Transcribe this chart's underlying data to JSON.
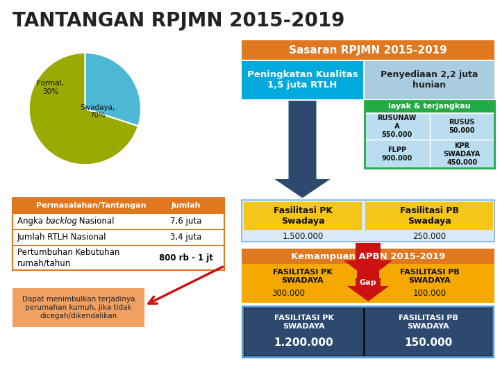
{
  "title": "TANTANGAN RPJMN 2015-2019",
  "title_color": "#222222",
  "bg_color": "#ffffff",
  "pie_slices": [
    30,
    70
  ],
  "pie_colors": [
    "#4db8d4",
    "#9aaa00"
  ],
  "pie_labels_formal": "Formal,\n30%",
  "pie_labels_swadaya": "Swadaya,\n70%",
  "table_header_bg": "#e07820",
  "table_header_text_color": "#ffffff",
  "table_header_col1": "Permasalahan/Tantangan",
  "table_header_col2": "Jumlah",
  "table_rows": [
    [
      "Angka backlog Nasional",
      "7,6 juta"
    ],
    [
      "Jumlah RTLH Nasional",
      "3,4 juta"
    ],
    [
      "Pertumbuhan Kebutuhan\nrumah/tahun",
      "800 rb - 1 jt"
    ]
  ],
  "table_border_color": "#e07820",
  "note_bg": "#f0a060",
  "note_text": "Dapat menimbulkan terjadinya\nperumahan kumuh, jika tidak\ndicegah/dikendalikan",
  "sasaran_header_bg": "#e07820",
  "sasaran_header_text": "Sasaran RPJMN 2015-2019",
  "sasaran_header_text_color": "#ffffff",
  "pk_bg": "#00aadd",
  "pk_text": "Peningkatan Kualitas\n1,5 juta RTLH",
  "pk_text_color": "#ffffff",
  "pb_bg": "#aacce0",
  "pb_text": "Penyediaan 2,2 juta\nhunian",
  "pb_text_color": "#222222",
  "layak_bg": "#22aa44",
  "layak_text": "layak & terjangkau",
  "layak_text_color": "#ffffff",
  "rusunawa_text": "RUSUNAW\nA\n550.000",
  "rusus_text": "RUSUS\n50.000",
  "flpp_text": "FLPP\n900.000",
  "kpr_text": "KPR\nSWADAYA\n450.000",
  "cell_bg": "#bbddf0",
  "fas_pk_bg": "#f5c518",
  "fas_pk_text": "Fasilitasi PK\nSwadaya",
  "fas_pk_val": "1.500.000",
  "fas_pb_bg": "#f5c518",
  "fas_pb_text": "Fasilitasi PB\nSwadaya",
  "fas_pb_val": "250.000",
  "fas_outer_bg": "#d8eaf8",
  "fas_outer_border": "#99bbdd",
  "arrow_color": "#2d4a6e",
  "red_arrow_color": "#cc1111",
  "kemampuan_bg": "#e07820",
  "kemampuan_text": "Kemampuan APBN 2015-2019",
  "kemampuan_text_color": "#ffffff",
  "apbn_bg": "#f5a800",
  "apbn_pk_text": "FASILITASI PK\nSWADAYA",
  "apbn_pk_val": "300.000",
  "apbn_pb_text": "FASILITASI PB\nSWADAYA",
  "apbn_pb_val": "100.000",
  "gap_text": "Gap",
  "gap_bg": "#cc1111",
  "bottom_border_color": "#5599dd",
  "bottom_pk_bg": "#2d4a6e",
  "bottom_pk_text": "FASILITASI PK\nSWADAYA",
  "bottom_pk_val": "1.200.000",
  "bottom_pb_bg": "#2d4a6e",
  "bottom_pb_text": "FASILITASI PB\nSWADAYA",
  "bottom_pb_val": "150.000"
}
